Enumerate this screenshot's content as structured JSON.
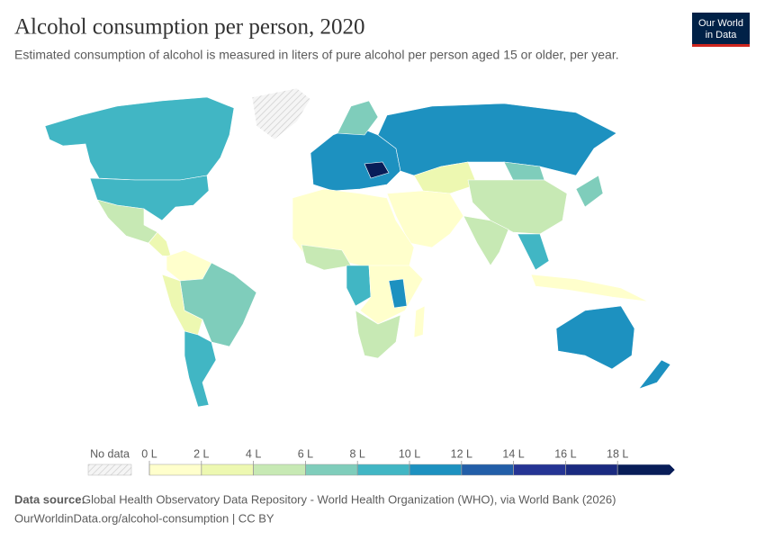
{
  "header": {
    "title": "Alcohol consumption per person, 2020",
    "subtitle": "Estimated consumption of alcohol is measured in liters of pure alcohol per person aged 15 or older, per year.",
    "logo": [
      "Our World",
      "in Data"
    ]
  },
  "legend": {
    "no_data_label": "No data",
    "ticks": [
      {
        "value": 0,
        "label": "0 L"
      },
      {
        "value": 2,
        "label": "2 L"
      },
      {
        "value": 4,
        "label": "4 L"
      },
      {
        "value": 6,
        "label": "6 L"
      },
      {
        "value": 8,
        "label": "8 L"
      },
      {
        "value": 10,
        "label": "10 L"
      },
      {
        "value": 12,
        "label": "12 L"
      },
      {
        "value": 14,
        "label": "14 L"
      },
      {
        "value": 16,
        "label": "16 L"
      },
      {
        "value": 18,
        "label": "18 L"
      }
    ],
    "colors": [
      "#ffffcc",
      "#edf8b1",
      "#c7e9b4",
      "#7fcdbb",
      "#41b6c4",
      "#1d91c0",
      "#225ea8",
      "#253494",
      "#1a2a80",
      "#081d58"
    ]
  },
  "footer": {
    "source_label": "Data source:",
    "source": "Global Health Observatory Data Repository - World Health Organization (WHO), via World Bank (2026)",
    "url": "OurWorldinData.org/alcohol-consumption | CC BY"
  }
}
